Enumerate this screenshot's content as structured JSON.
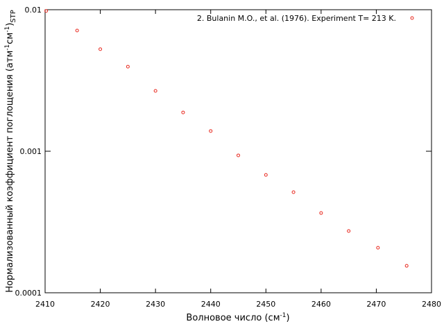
{
  "chart_data": {
    "type": "scatter",
    "log_y": true,
    "legend": "top right",
    "xlabel": [
      "Волновое число (см",
      "-1",
      ")"
    ],
    "ylabel": [
      "Нормализованный коэффициент поглощения (атм",
      "-1",
      "см",
      "-1",
      ")",
      "STP"
    ],
    "xlim": [
      2410,
      2480
    ],
    "xticks": [
      2410,
      2420,
      2430,
      2440,
      2450,
      2460,
      2470,
      2480
    ],
    "ylim": [
      0.0001,
      0.01
    ],
    "yticks": [
      0.0001,
      0.001,
      0.01
    ],
    "series": [
      {
        "name": "2. Bulanin M.O., et al. (1976). Experiment T= 213 K.",
        "color": "#e8281e",
        "x": [
          2410.2,
          2415.8,
          2420,
          2425,
          2430,
          2435,
          2440,
          2445,
          2450,
          2455,
          2460,
          2465,
          2470.3,
          2475.5
        ],
        "values": [
          0.0098,
          0.00713,
          0.00526,
          0.00396,
          0.00267,
          0.00188,
          0.00139,
          0.000935,
          0.00068,
          0.000514,
          0.000366,
          0.000273,
          0.000208,
          0.000155
        ]
      }
    ]
  }
}
